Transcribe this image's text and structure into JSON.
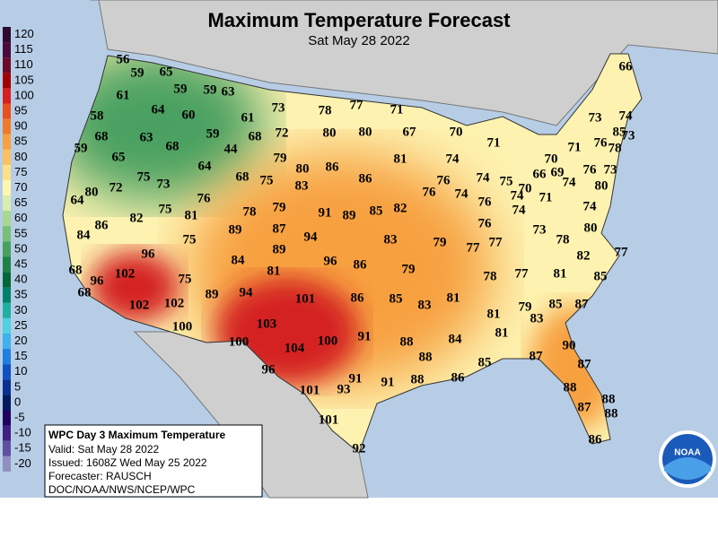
{
  "title": "Maximum Temperature Forecast",
  "subtitle": "Sat May 28 2022",
  "legend": {
    "values": [
      120,
      115,
      110,
      105,
      100,
      95,
      90,
      85,
      80,
      75,
      70,
      65,
      60,
      55,
      50,
      45,
      40,
      35,
      30,
      25,
      20,
      15,
      10,
      5,
      0,
      -5,
      -10,
      -15,
      -20
    ],
    "colors": [
      "#2d0a2e",
      "#4a0a3a",
      "#6b0a2a",
      "#a00000",
      "#d42020",
      "#e8501c",
      "#f07a28",
      "#f7a040",
      "#fcc060",
      "#fde08a",
      "#fef5b0",
      "#d8edb0",
      "#a8d890",
      "#78c078",
      "#48a060",
      "#208048",
      "#006838",
      "#00806a",
      "#20b0a0",
      "#50d0e0",
      "#40b0f0",
      "#2080e0",
      "#1050c0",
      "#083090",
      "#001a60",
      "#200060",
      "#402080",
      "#6050a0",
      "#9090c0"
    ]
  },
  "info": {
    "title": "WPC Day 3 Maximum Temperature",
    "lines": [
      "Valid: Sat May 28 2022",
      "Issued: 1608Z Wed May 25 2022",
      "Forecaster: RAUSCH",
      "DOC/NOAA/NWS/NCEP/WPC"
    ]
  },
  "logo": "NOAA",
  "temperatures": [
    56,
    59,
    65,
    61,
    59,
    59,
    63,
    58,
    64,
    60,
    61,
    73,
    78,
    77,
    71,
    66,
    73,
    74,
    68,
    63,
    68,
    59,
    68,
    72,
    80,
    80,
    67,
    70,
    71,
    85,
    59,
    65,
    44,
    64,
    81,
    74,
    70,
    71,
    76,
    78,
    73,
    75,
    73,
    68,
    75,
    79,
    80,
    86,
    86,
    76,
    74,
    75,
    70,
    69,
    66,
    74,
    76,
    73,
    80,
    80,
    72,
    76,
    83,
    76,
    74,
    71,
    64,
    75,
    81,
    78,
    79,
    91,
    89,
    85,
    82,
    74,
    76,
    74,
    74,
    86,
    82,
    89,
    87,
    94,
    83,
    79,
    77,
    77,
    76,
    73,
    78,
    80,
    84,
    75,
    89,
    84,
    96,
    86,
    79,
    82,
    77,
    96,
    81,
    78,
    77,
    81,
    85,
    68,
    102,
    96,
    75,
    68,
    94,
    101,
    86,
    85,
    83,
    81,
    79,
    83,
    85,
    87,
    102,
    102,
    89,
    81,
    100,
    103,
    91,
    81,
    100,
    104,
    100,
    88,
    84,
    90,
    88,
    85,
    87,
    87,
    96,
    91,
    91,
    88,
    86,
    101,
    93,
    88,
    88,
    87,
    88,
    101,
    86,
    92
  ]
}
